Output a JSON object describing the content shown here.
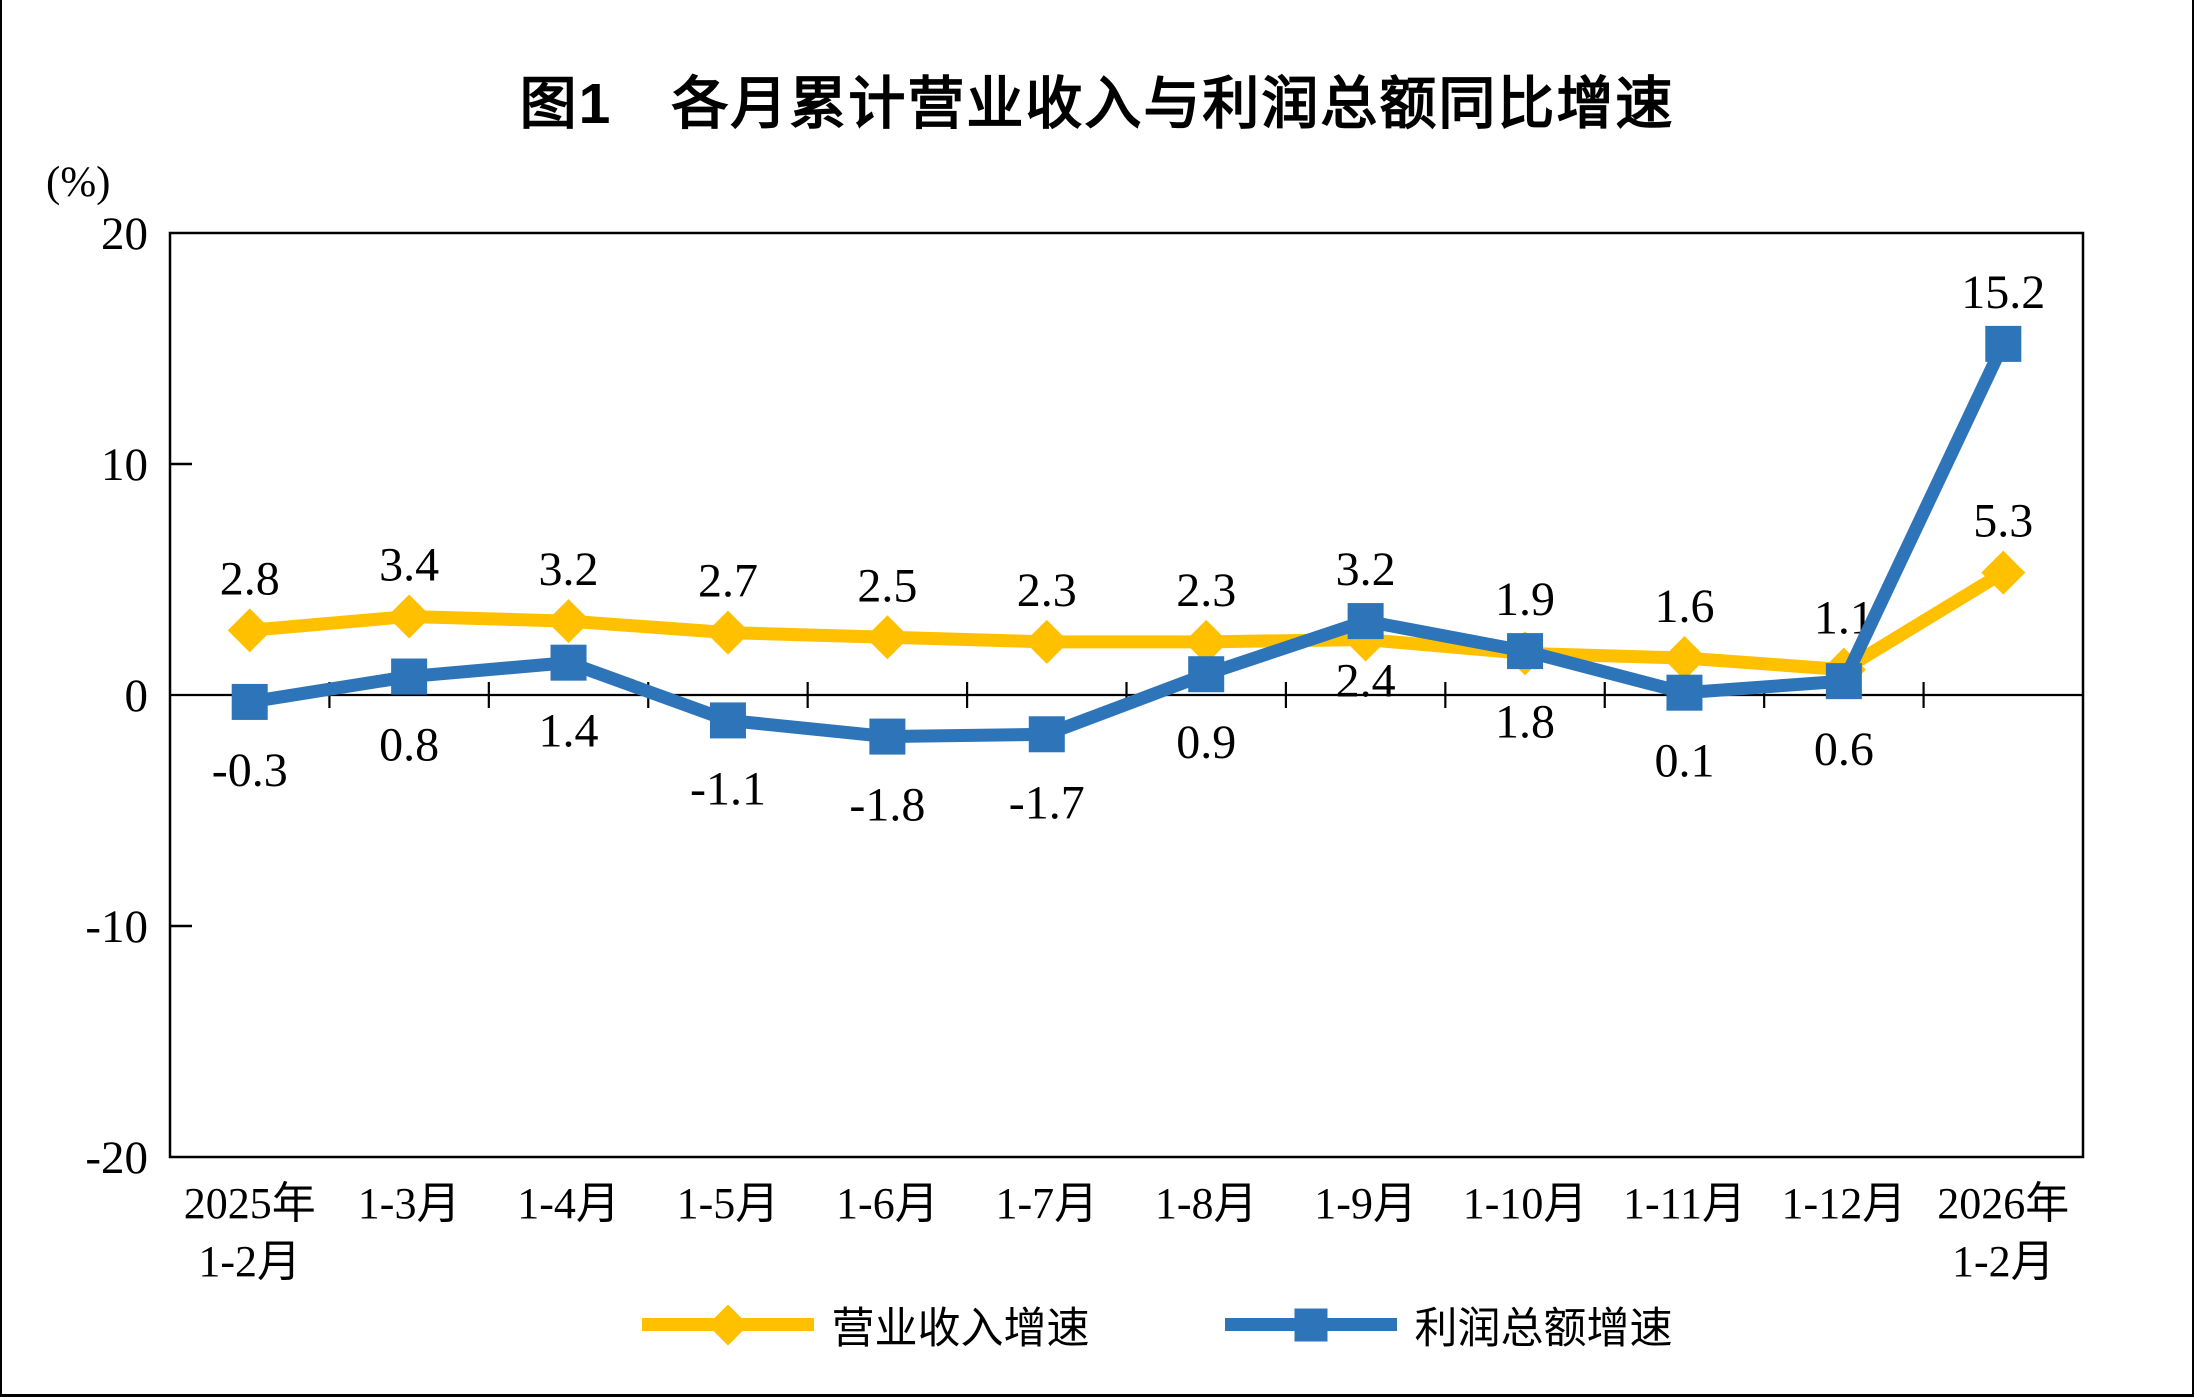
{
  "title": "图1　各月累计营业收入与利润总额同比增速",
  "chart_data": {
    "type": "line",
    "title": "图1　各月累计营业收入与利润总额同比增速",
    "unit_label": "(%)",
    "categories": [
      "2025年\n1-2月",
      "1-3月",
      "1-4月",
      "1-5月",
      "1-6月",
      "1-7月",
      "1-8月",
      "1-9月",
      "1-10月",
      "1-11月",
      "1-12月",
      "2026年\n1-2月"
    ],
    "ylim": [
      -20,
      20
    ],
    "y_ticks": [
      20,
      10,
      0,
      -10,
      -20
    ],
    "y_tick_labels": [
      "20",
      "10",
      "0",
      "-10",
      "-20"
    ],
    "grid": false,
    "legend_position": "bottom",
    "axis_color": "#000000",
    "series": [
      {
        "name": "营业收入增速",
        "color": "#FFC000",
        "marker": "diamond",
        "values": [
          2.8,
          3.4,
          3.2,
          2.7,
          2.5,
          2.3,
          2.3,
          2.4,
          1.8,
          1.6,
          1.1,
          5.3
        ],
        "labels": [
          "2.8",
          "3.4",
          "3.2",
          "2.7",
          "2.5",
          "2.3",
          "2.3",
          "2.4",
          "1.8",
          "1.6",
          "1.1",
          "5.3"
        ],
        "label_side": [
          "above",
          "above",
          "above",
          "above",
          "above",
          "above",
          "above",
          "below",
          "below",
          "above",
          "above",
          "above"
        ],
        "label_offsets": {
          "7": 57
        }
      },
      {
        "name": "利润总额增速",
        "color": "#2E74B9",
        "marker": "square",
        "values": [
          -0.3,
          0.8,
          1.4,
          -1.1,
          -1.8,
          -1.7,
          0.9,
          3.2,
          1.9,
          0.1,
          0.6,
          15.2
        ],
        "labels": [
          "-0.3",
          "0.8",
          "1.4",
          "-1.1",
          "-1.8",
          "-1.7",
          "0.9",
          "3.2",
          "1.9",
          "0.1",
          "0.6",
          "15.2"
        ],
        "label_side": [
          "below",
          "below",
          "below",
          "below",
          "below",
          "below",
          "below",
          "above",
          "above",
          "below",
          "below",
          "above"
        ],
        "label_offsets": {}
      }
    ]
  },
  "legend": {
    "items": [
      {
        "label": "营业收入增速"
      },
      {
        "label": "利润总额增速"
      }
    ]
  }
}
